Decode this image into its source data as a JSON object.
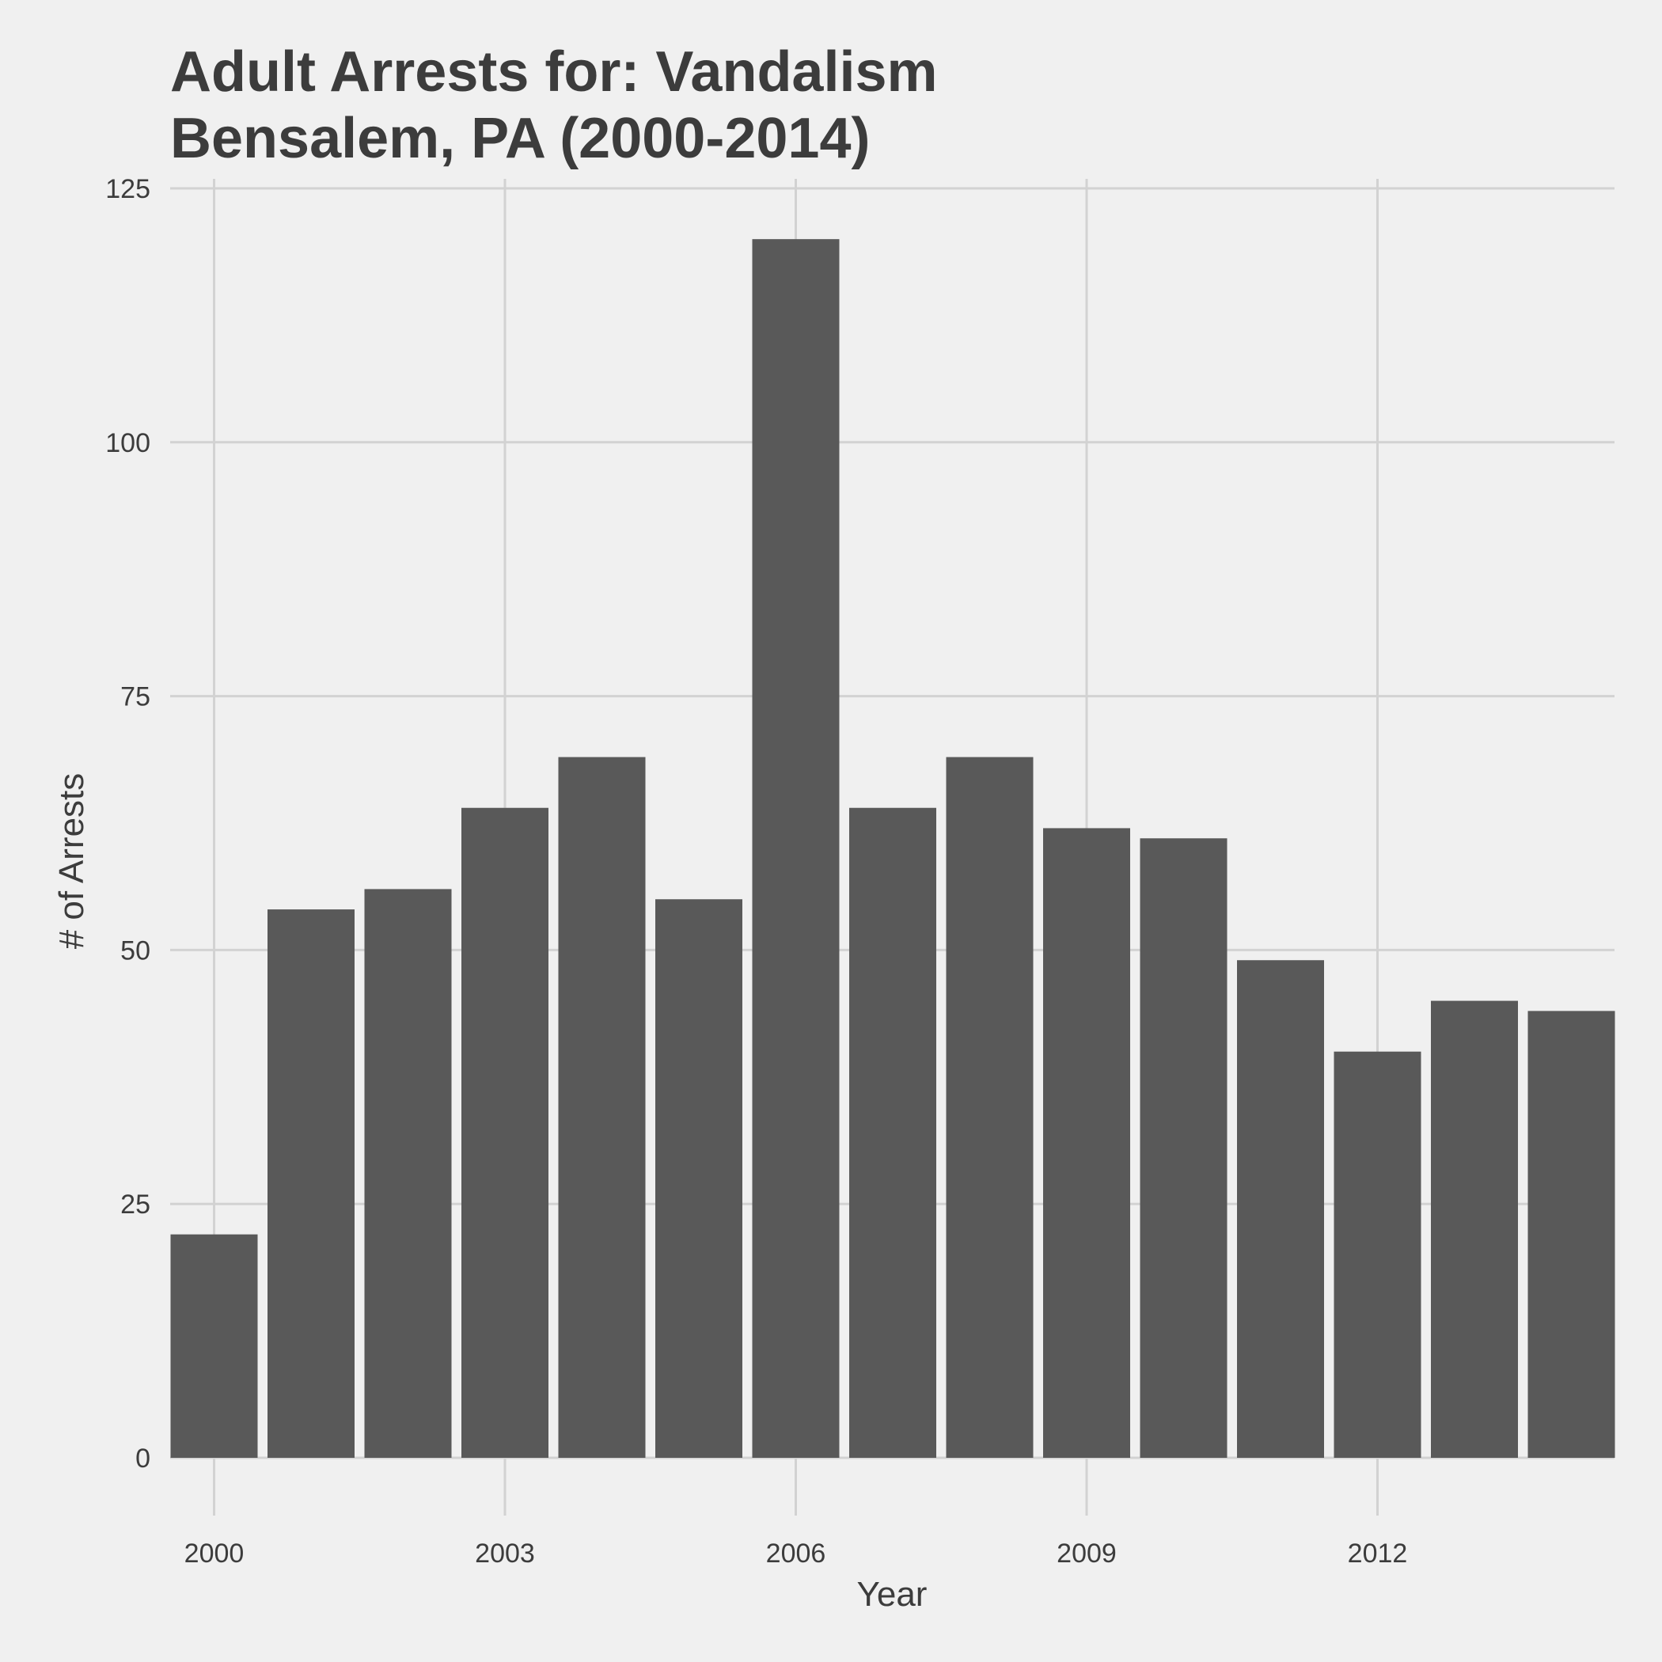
{
  "chart_data": {
    "type": "bar",
    "title_lines": [
      "Adult Arrests for: Vandalism",
      "Bensalem, PA (2000-2014)"
    ],
    "xlabel": "Year",
    "ylabel": "# of Arrests",
    "x": [
      2000,
      2001,
      2002,
      2003,
      2004,
      2005,
      2006,
      2007,
      2008,
      2009,
      2010,
      2011,
      2012,
      2013,
      2014
    ],
    "values": [
      22,
      54,
      56,
      64,
      69,
      55,
      120,
      64,
      69,
      62,
      61,
      49,
      40,
      45,
      44
    ],
    "xticks": [
      "2000",
      "2003",
      "2006",
      "2009",
      "2012"
    ],
    "yticks": [
      "0",
      "25",
      "50",
      "75",
      "100",
      "125"
    ],
    "ylim": [
      0,
      125
    ],
    "grid": true,
    "legend": "none",
    "colors": {
      "bar": "#595959",
      "background": "#f0f0f0",
      "grid": "#d2d2d2",
      "text": "#3c3c3c"
    }
  }
}
